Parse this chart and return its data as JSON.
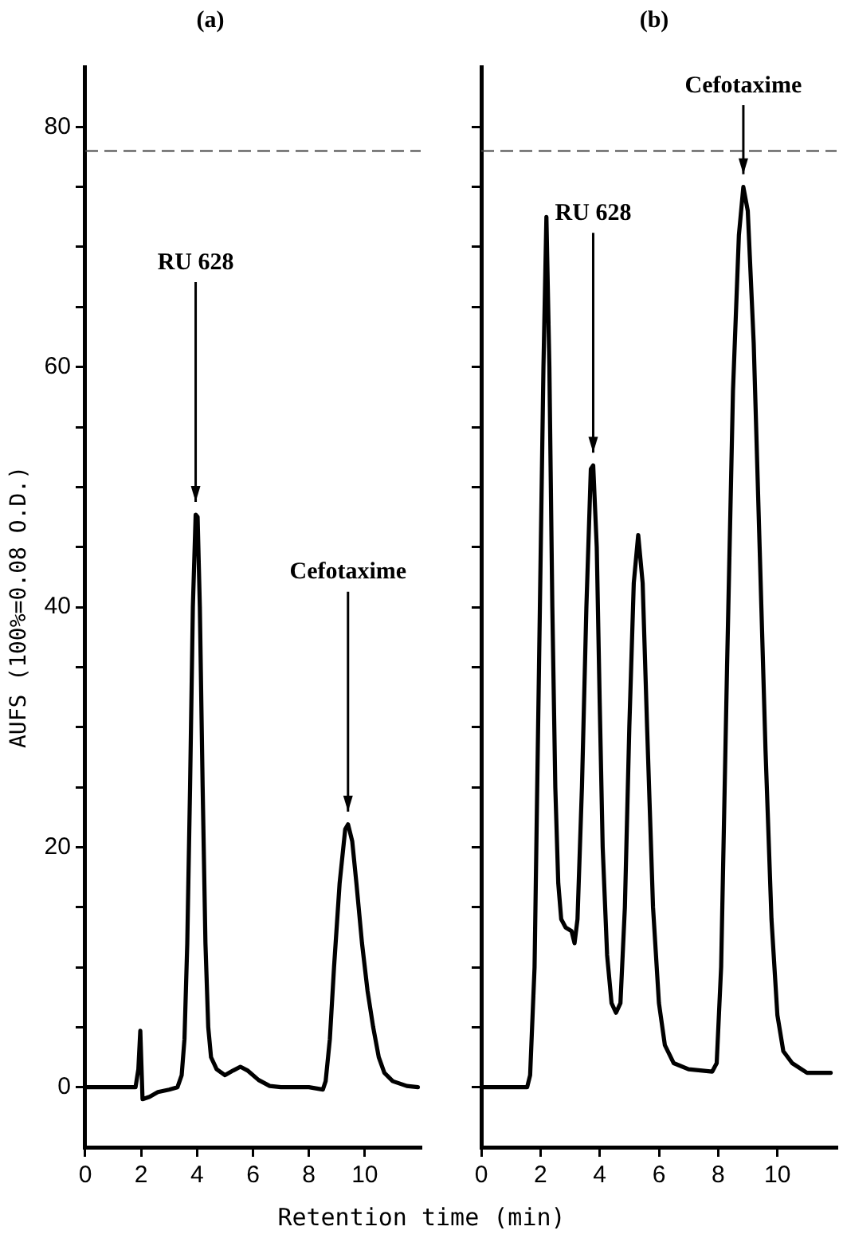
{
  "chart_data": [
    {
      "type": "line",
      "title": "(a)",
      "ylabel": "AUFS (100%=0.08 O.D.)",
      "xlabel": "Retention time (min)",
      "xlim": [
        0,
        12
      ],
      "xticks": [
        0,
        2,
        4,
        6,
        8,
        10
      ],
      "ylim": [
        -5,
        85
      ],
      "yticks": [
        0,
        {
          "value": 5,
          "label": null
        },
        {
          "value": 10,
          "label": null
        },
        {
          "value": 15,
          "label": null
        },
        20,
        {
          "value": 25,
          "label": null
        },
        {
          "value": 30,
          "label": null
        },
        {
          "value": 35,
          "label": null
        },
        40,
        {
          "value": 45,
          "label": null
        },
        {
          "value": 50,
          "label": null
        },
        {
          "value": 55,
          "label": null
        },
        60,
        {
          "value": 65,
          "label": null
        },
        {
          "value": 70,
          "label": null
        },
        {
          "value": 75,
          "label": null
        },
        80
      ],
      "grid": false,
      "legend": false,
      "marker": "none",
      "line_style": "solid",
      "ref_lines": [
        {
          "axis": "y",
          "value": 78,
          "color": "#444444",
          "line_style": "dashed"
        }
      ],
      "annotations": [
        {
          "text": "RU 628",
          "x": 3.95,
          "y": 47.7
        },
        {
          "text": "Cefotaxime",
          "x": 9.4,
          "y": 21.9
        }
      ],
      "series": [
        {
          "color": "#000000",
          "x": [
            0,
            1.8,
            1.9,
            1.97,
            2.05,
            2.3,
            2.6,
            3.0,
            3.3,
            3.45,
            3.55,
            3.65,
            3.75,
            3.85,
            3.95,
            4.02,
            4.1,
            4.2,
            4.3,
            4.4,
            4.5,
            4.7,
            5.0,
            5.3,
            5.55,
            5.8,
            6.2,
            6.6,
            7.0,
            8.0,
            8.5,
            8.6,
            8.75,
            8.9,
            9.1,
            9.3,
            9.4,
            9.55,
            9.7,
            9.9,
            10.1,
            10.3,
            10.5,
            10.7,
            11.0,
            11.5,
            11.9
          ],
          "values": [
            0,
            0,
            1.5,
            4.7,
            -1,
            -0.8,
            -0.4,
            -0.2,
            0,
            1,
            4,
            12,
            25,
            40,
            47.7,
            47.5,
            40,
            25,
            12,
            5,
            2.5,
            1.5,
            1,
            1.4,
            1.7,
            1.4,
            0.6,
            0.1,
            0,
            0,
            -0.2,
            0.5,
            4,
            10,
            17,
            21.5,
            21.9,
            20.5,
            17,
            12,
            8,
            5,
            2.5,
            1.2,
            0.5,
            0.1,
            0
          ]
        }
      ]
    },
    {
      "type": "line",
      "title": "(b)",
      "xlim": [
        0,
        12
      ],
      "xticks": [
        0,
        2,
        4,
        6,
        8,
        10
      ],
      "ylim": [
        -5,
        85
      ],
      "yticks": [
        0,
        5,
        10,
        15,
        20,
        25,
        30,
        35,
        40,
        45,
        50,
        55,
        60,
        65,
        70,
        75,
        80
      ],
      "tick_labels": "x",
      "grid": false,
      "legend": false,
      "marker": "none",
      "line_style": "solid",
      "ref_lines": [
        {
          "axis": "y",
          "value": 78,
          "color": "#444444",
          "line_style": "dashed"
        }
      ],
      "annotations": [
        {
          "text": "RU 628",
          "x": 3.78,
          "y": 51.8
        },
        {
          "text": "Cefotaxime",
          "x": 8.85,
          "y": 75
        }
      ],
      "series": [
        {
          "color": "#000000",
          "x": [
            0,
            1.55,
            1.65,
            1.8,
            1.95,
            2.1,
            2.2,
            2.3,
            2.4,
            2.5,
            2.6,
            2.7,
            2.85,
            3.05,
            3.15,
            3.25,
            3.4,
            3.55,
            3.7,
            3.78,
            3.9,
            4.0,
            4.1,
            4.25,
            4.4,
            4.55,
            4.7,
            4.85,
            5.0,
            5.15,
            5.3,
            5.45,
            5.6,
            5.8,
            6.0,
            6.2,
            6.5,
            7.0,
            7.8,
            7.95,
            8.1,
            8.3,
            8.5,
            8.7,
            8.85,
            9.0,
            9.2,
            9.4,
            9.6,
            9.8,
            10.0,
            10.2,
            10.5,
            11.0,
            11.8
          ],
          "values": [
            0,
            0,
            1,
            10,
            35,
            60,
            72.5,
            60,
            40,
            25,
            17,
            14,
            13.3,
            13,
            12,
            14,
            25,
            40,
            51.5,
            51.8,
            45,
            32,
            20,
            11,
            7,
            6.2,
            7,
            15,
            30,
            42,
            46,
            42,
            30,
            15,
            7,
            3.5,
            2,
            1.5,
            1.3,
            2,
            10,
            35,
            58,
            71,
            75,
            73,
            62,
            45,
            28,
            14,
            6,
            3,
            2,
            1.2,
            1.2
          ]
        }
      ]
    }
  ]
}
